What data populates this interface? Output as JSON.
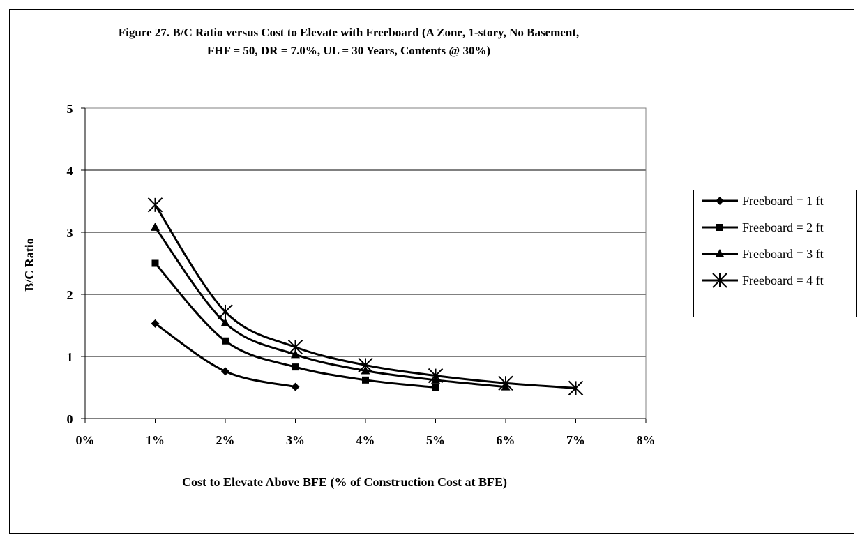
{
  "chart_data": {
    "type": "line",
    "title_line1": "Figure 27. B/C Ratio versus Cost to Elevate with Freeboard (A Zone, 1-story, No Basement,",
    "title_line2": "FHF = 50, DR = 7.0%, UL = 30 Years, Contents @ 30%)",
    "xlabel": "Cost to Elevate Above BFE (% of Construction Cost at BFE)",
    "ylabel": "B/C Ratio",
    "xlim": [
      0,
      8
    ],
    "ylim": [
      0,
      5
    ],
    "x_ticks": [
      "0%",
      "1%",
      "2%",
      "3%",
      "4%",
      "5%",
      "6%",
      "7%",
      "8%"
    ],
    "y_ticks": [
      "0",
      "1",
      "2",
      "3",
      "4",
      "5"
    ],
    "grid": "horizontal major gridlines",
    "legend_position": "right",
    "series": [
      {
        "name": "Freeboard = 1 ft",
        "marker": "diamond",
        "x": [
          1,
          2,
          3
        ],
        "y": [
          1.53,
          0.76,
          0.51
        ]
      },
      {
        "name": "Freeboard = 2 ft",
        "marker": "square",
        "x": [
          1,
          2,
          3,
          4,
          5
        ],
        "y": [
          2.5,
          1.25,
          0.83,
          0.62,
          0.5
        ]
      },
      {
        "name": "Freeboard = 3 ft",
        "marker": "triangle",
        "x": [
          1,
          2,
          3,
          4,
          5,
          6
        ],
        "y": [
          3.08,
          1.54,
          1.03,
          0.77,
          0.62,
          0.51
        ]
      },
      {
        "name": "Freeboard = 4 ft",
        "marker": "asterisk",
        "x": [
          1,
          2,
          3,
          4,
          5,
          6,
          7
        ],
        "y": [
          3.44,
          1.72,
          1.15,
          0.86,
          0.69,
          0.57,
          0.49
        ]
      }
    ]
  }
}
